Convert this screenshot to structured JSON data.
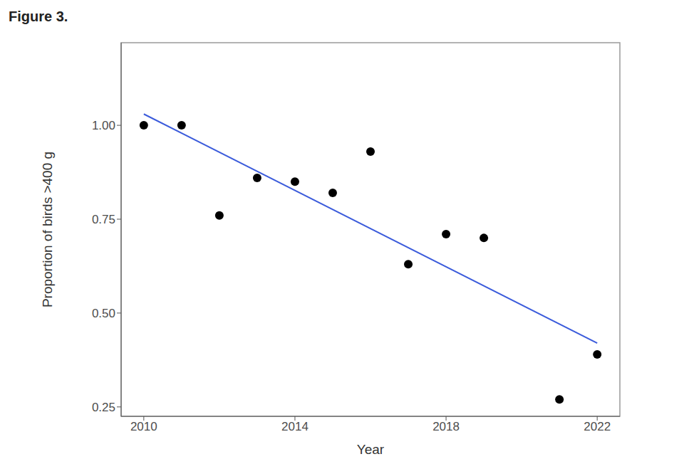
{
  "chart_data": {
    "type": "scatter",
    "title": "Figure 3.",
    "x_label": "Year",
    "y_label": "Proportion of birds >400 g",
    "series": [
      {
        "type": "scatter",
        "color": "#000000",
        "marker": "circle",
        "x": [
          2010,
          2011,
          2012,
          2013,
          2014,
          2015,
          2016,
          2017,
          2018,
          2019,
          2021,
          2022
        ],
        "values": [
          1.0,
          1.0,
          0.76,
          0.86,
          0.85,
          0.82,
          0.93,
          0.63,
          0.71,
          0.7,
          0.27,
          0.39
        ]
      },
      {
        "type": "line",
        "color": "#3b5bdb",
        "line_style": "solid",
        "x": [
          2010,
          2022
        ],
        "values": [
          1.03,
          0.42
        ]
      }
    ],
    "xlim": [
      2009.4,
      2022.6
    ],
    "ylim": [
      0.225,
      1.22
    ],
    "xticks": [
      2010,
      2014,
      2018,
      2022
    ],
    "yticks": [
      0.25,
      {
        "value": 0.5,
        "label": "0.50"
      },
      0.75,
      {
        "value": 1.0,
        "label": "1.00"
      }
    ],
    "grid": false
  }
}
